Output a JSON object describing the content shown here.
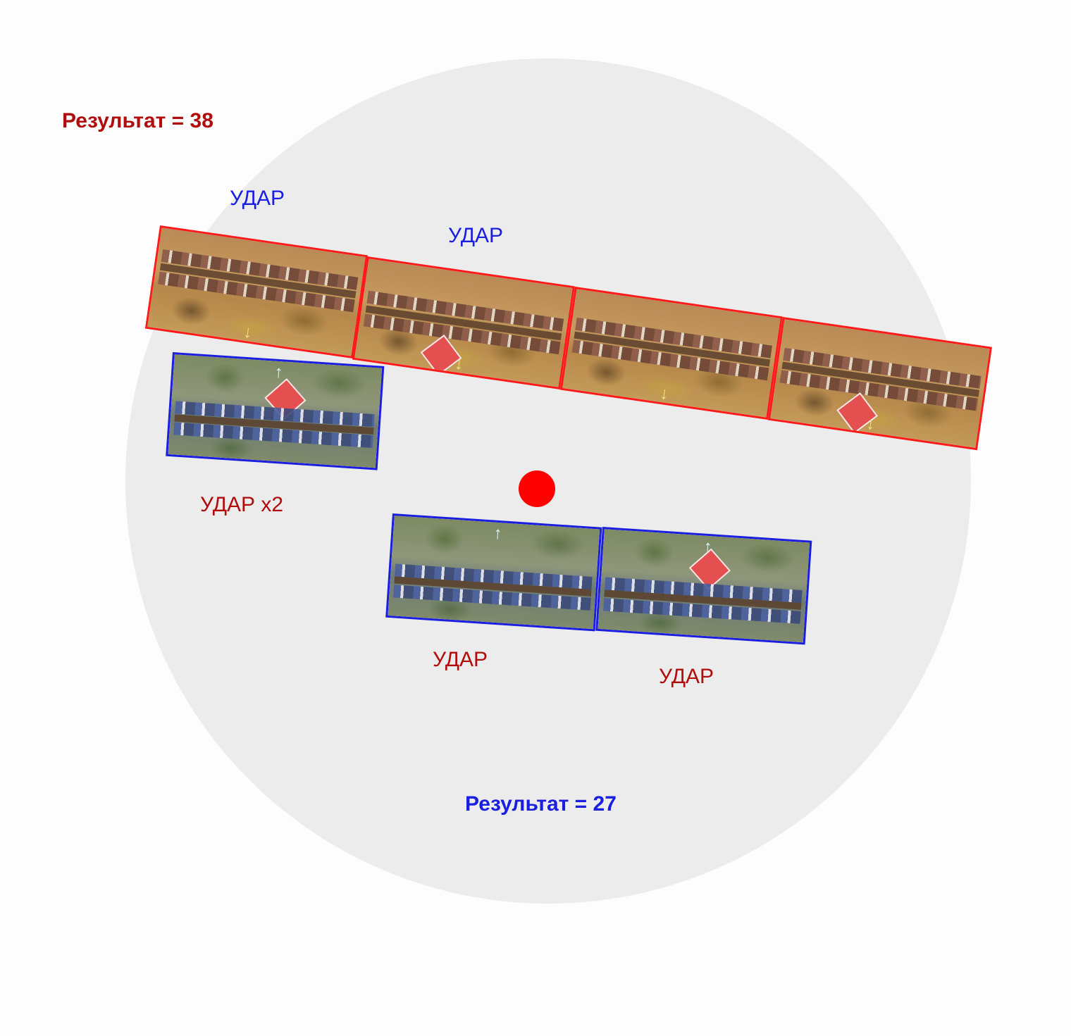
{
  "red_result": "Результат = 38",
  "blue_result": "Результат = 27",
  "labels": {
    "blue_strike_1": "УДАР",
    "blue_strike_2": "УДАР",
    "red_strike_x2": "УДАР x2",
    "red_strike_1": "УДАР",
    "red_strike_2": "УДАР"
  },
  "colors": {
    "red_side": "#b00d0d",
    "blue_side": "#1a1ee0",
    "objective_marker": "#ff0000",
    "table": "#ececec"
  },
  "icons": {
    "red_arrow": "↓",
    "blue_arrow": "↑"
  }
}
